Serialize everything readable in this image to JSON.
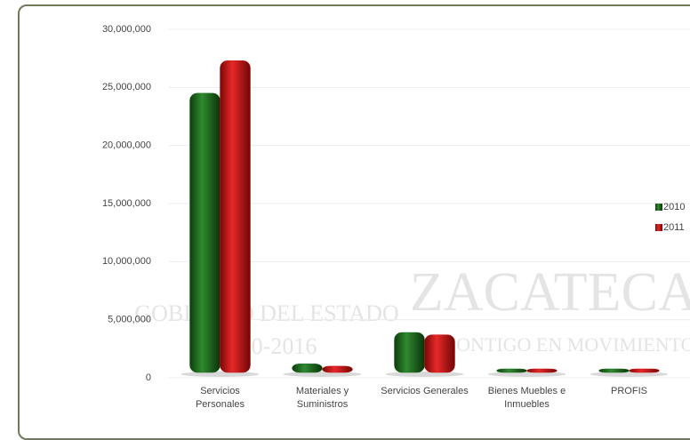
{
  "chart_data": {
    "type": "bar",
    "categories": [
      "Servicios\nPersonales",
      "Materiales y\nSuministros",
      "Servicios Generales",
      "Bienes Muebles e\nInmuebles",
      "PROFIS"
    ],
    "series": [
      {
        "name": "2010",
        "color": "#1e6b1e",
        "values": [
          24500000,
          1200000,
          3900000,
          300000,
          200000
        ]
      },
      {
        "name": "2011",
        "color": "#c41414",
        "values": [
          27300000,
          1000000,
          3700000,
          200000,
          700000
        ]
      }
    ],
    "ylim": [
      0,
      30000000
    ],
    "yticks": [
      0,
      {
        "value": 5000000,
        "label": "5,000,000"
      },
      {
        "value": 10000000,
        "label": "10,000,000"
      },
      {
        "value": 15000000,
        "label": "15,000,000"
      },
      {
        "value": 20000000,
        "label": "20,000,000"
      },
      {
        "value": 25000000,
        "label": "25,000,000"
      },
      {
        "value": 30000000,
        "label": "30,000,000"
      }
    ],
    "grid": true,
    "legend": "right",
    "watermark": [
      "GOBIERNO DEL ESTADO",
      "2010-2016",
      "ZACATECAS",
      "CONTIGO EN MOVIMIENTO"
    ]
  }
}
